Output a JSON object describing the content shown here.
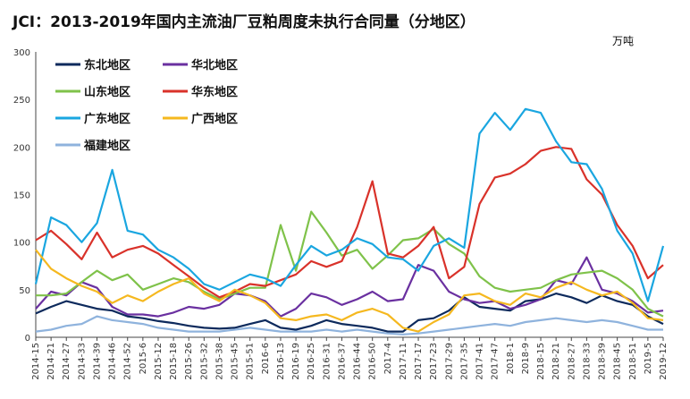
{
  "chart_data": {
    "type": "line",
    "title": "JCI：2013-2019年国内主流油厂豆粕周度未执行合同量（分地区）",
    "unit": "万吨",
    "ylim": [
      0,
      300
    ],
    "yticks": [
      0,
      50,
      100,
      150,
      200,
      250,
      300
    ],
    "grid": false,
    "legend": "top-left",
    "x": [
      "2014-15",
      "2014-21",
      "2014-27",
      "2014-33",
      "2014-39",
      "2014-46",
      "2014-52",
      "2015-6",
      "2015-12",
      "2015-18",
      "2015-26",
      "2015-32",
      "2015-38",
      "2015-45",
      "2015-51",
      "2016-6",
      "2016-13",
      "2016-19",
      "2016-25",
      "2016-31",
      "2016-37",
      "2016-44",
      "2016-50",
      "2017-4",
      "2017-11",
      "2017-17",
      "2017-23",
      "2017-29",
      "2017-35",
      "2017-41",
      "2017-47",
      "2018-1",
      "2018-9",
      "2018-15",
      "2018-21",
      "2018-27",
      "2018-33",
      "2018-39",
      "2018-45",
      "2018-51",
      "2019-5",
      "2019-12"
    ],
    "series": [
      {
        "name": "东北地区",
        "color": "#0d2a5c",
        "width": 2.2,
        "values": [
          25,
          32,
          38,
          34,
          30,
          28,
          22,
          20,
          17,
          15,
          12,
          10,
          9,
          10,
          14,
          18,
          10,
          8,
          12,
          18,
          14,
          12,
          10,
          6,
          6,
          18,
          20,
          28,
          42,
          32,
          30,
          28,
          38,
          40,
          46,
          42,
          36,
          44,
          38,
          34,
          22,
          14
        ]
      },
      {
        "name": "华北地区",
        "color": "#6a30a0",
        "width": 2.2,
        "values": [
          30,
          48,
          44,
          58,
          52,
          32,
          24,
          24,
          22,
          26,
          32,
          30,
          34,
          46,
          44,
          38,
          22,
          30,
          46,
          42,
          34,
          40,
          48,
          38,
          40,
          76,
          70,
          48,
          40,
          36,
          38,
          30,
          34,
          40,
          60,
          56,
          84,
          50,
          46,
          38,
          26,
          28
        ]
      },
      {
        "name": "山东地区",
        "color": "#7fc24a",
        "width": 2.2,
        "values": [
          44,
          44,
          46,
          58,
          70,
          60,
          66,
          50,
          56,
          62,
          58,
          48,
          40,
          46,
          52,
          52,
          118,
          70,
          132,
          110,
          86,
          92,
          72,
          86,
          102,
          104,
          114,
          98,
          88,
          64,
          52,
          48,
          50,
          52,
          60,
          66,
          68,
          70,
          62,
          50,
          30,
          22
        ]
      },
      {
        "name": "华东地区",
        "color": "#d9322a",
        "width": 2.2,
        "values": [
          102,
          112,
          98,
          82,
          110,
          84,
          92,
          96,
          88,
          76,
          64,
          52,
          42,
          48,
          56,
          54,
          60,
          66,
          80,
          74,
          80,
          116,
          164,
          88,
          84,
          96,
          116,
          62,
          74,
          140,
          168,
          172,
          182,
          196,
          200,
          198,
          166,
          150,
          118,
          96,
          62,
          76
        ]
      },
      {
        "name": "广东地区",
        "color": "#1aa6e0",
        "width": 2.2,
        "values": [
          56,
          126,
          118,
          100,
          120,
          176,
          112,
          108,
          92,
          84,
          72,
          56,
          50,
          58,
          66,
          62,
          54,
          76,
          96,
          86,
          92,
          104,
          98,
          84,
          82,
          70,
          96,
          104,
          94,
          214,
          236,
          218,
          240,
          236,
          206,
          184,
          182,
          156,
          112,
          88,
          38,
          96
        ]
      },
      {
        "name": "广西地区",
        "color": "#f5b81f",
        "width": 2.2,
        "values": [
          92,
          72,
          62,
          54,
          48,
          36,
          44,
          38,
          48,
          56,
          62,
          46,
          38,
          50,
          44,
          36,
          20,
          18,
          22,
          24,
          18,
          26,
          30,
          24,
          10,
          6,
          16,
          24,
          44,
          46,
          38,
          34,
          46,
          42,
          52,
          58,
          50,
          44,
          48,
          36,
          20,
          18
        ]
      },
      {
        "name": "福建地区",
        "color": "#8fb3dd",
        "width": 2.2,
        "values": [
          6,
          8,
          12,
          14,
          22,
          18,
          16,
          14,
          10,
          8,
          6,
          6,
          6,
          8,
          10,
          8,
          6,
          6,
          6,
          8,
          6,
          8,
          6,
          4,
          3,
          4,
          6,
          8,
          10,
          12,
          14,
          12,
          16,
          18,
          20,
          18,
          16,
          18,
          16,
          12,
          8,
          8
        ]
      }
    ]
  }
}
